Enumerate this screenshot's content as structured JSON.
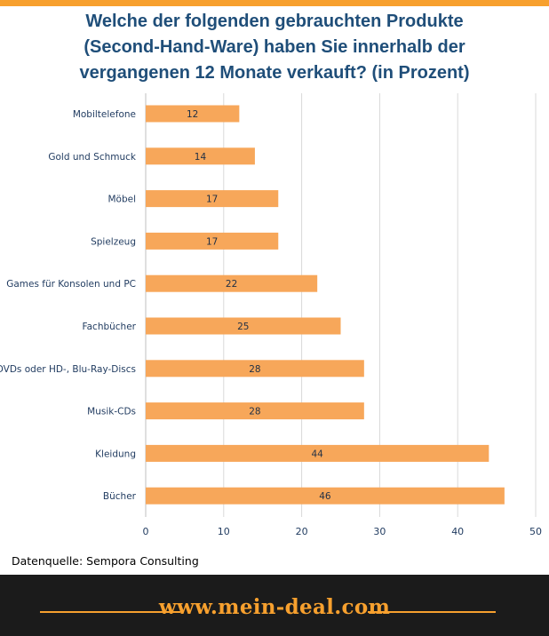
{
  "colors": {
    "accent": "#f7a02e",
    "bar_fill": "#f7a75a",
    "title": "#1f4e79",
    "footer_bg": "#1b1b1b"
  },
  "chart_data": {
    "type": "bar",
    "orientation": "horizontal",
    "title_lines": [
      "Welche der folgenden gebrauchten Produkte",
      "(Second-Hand-Ware)  haben Sie innerhalb der",
      "vergangenen 12 Monate verkauft? (in Prozent)"
    ],
    "categories": [
      "Mobiltelefone",
      "Gold und Schmuck",
      "Möbel",
      "Spielzeug",
      "Games für Konsolen und PC",
      "Fachbücher",
      "DVDs oder HD-, Blu-Ray-Discs",
      "Musik-CDs",
      "Kleidung",
      "Bücher"
    ],
    "values": [
      12,
      14,
      17,
      17,
      22,
      25,
      28,
      28,
      44,
      46
    ],
    "xlim": [
      0,
      50
    ],
    "xticks": [
      0,
      10,
      20,
      30,
      40,
      50
    ],
    "grid": "vertical",
    "data_labels": true
  },
  "source": "Datenquelle: Sempora Consulting",
  "footer": {
    "site": "www.mein-deal.com"
  }
}
